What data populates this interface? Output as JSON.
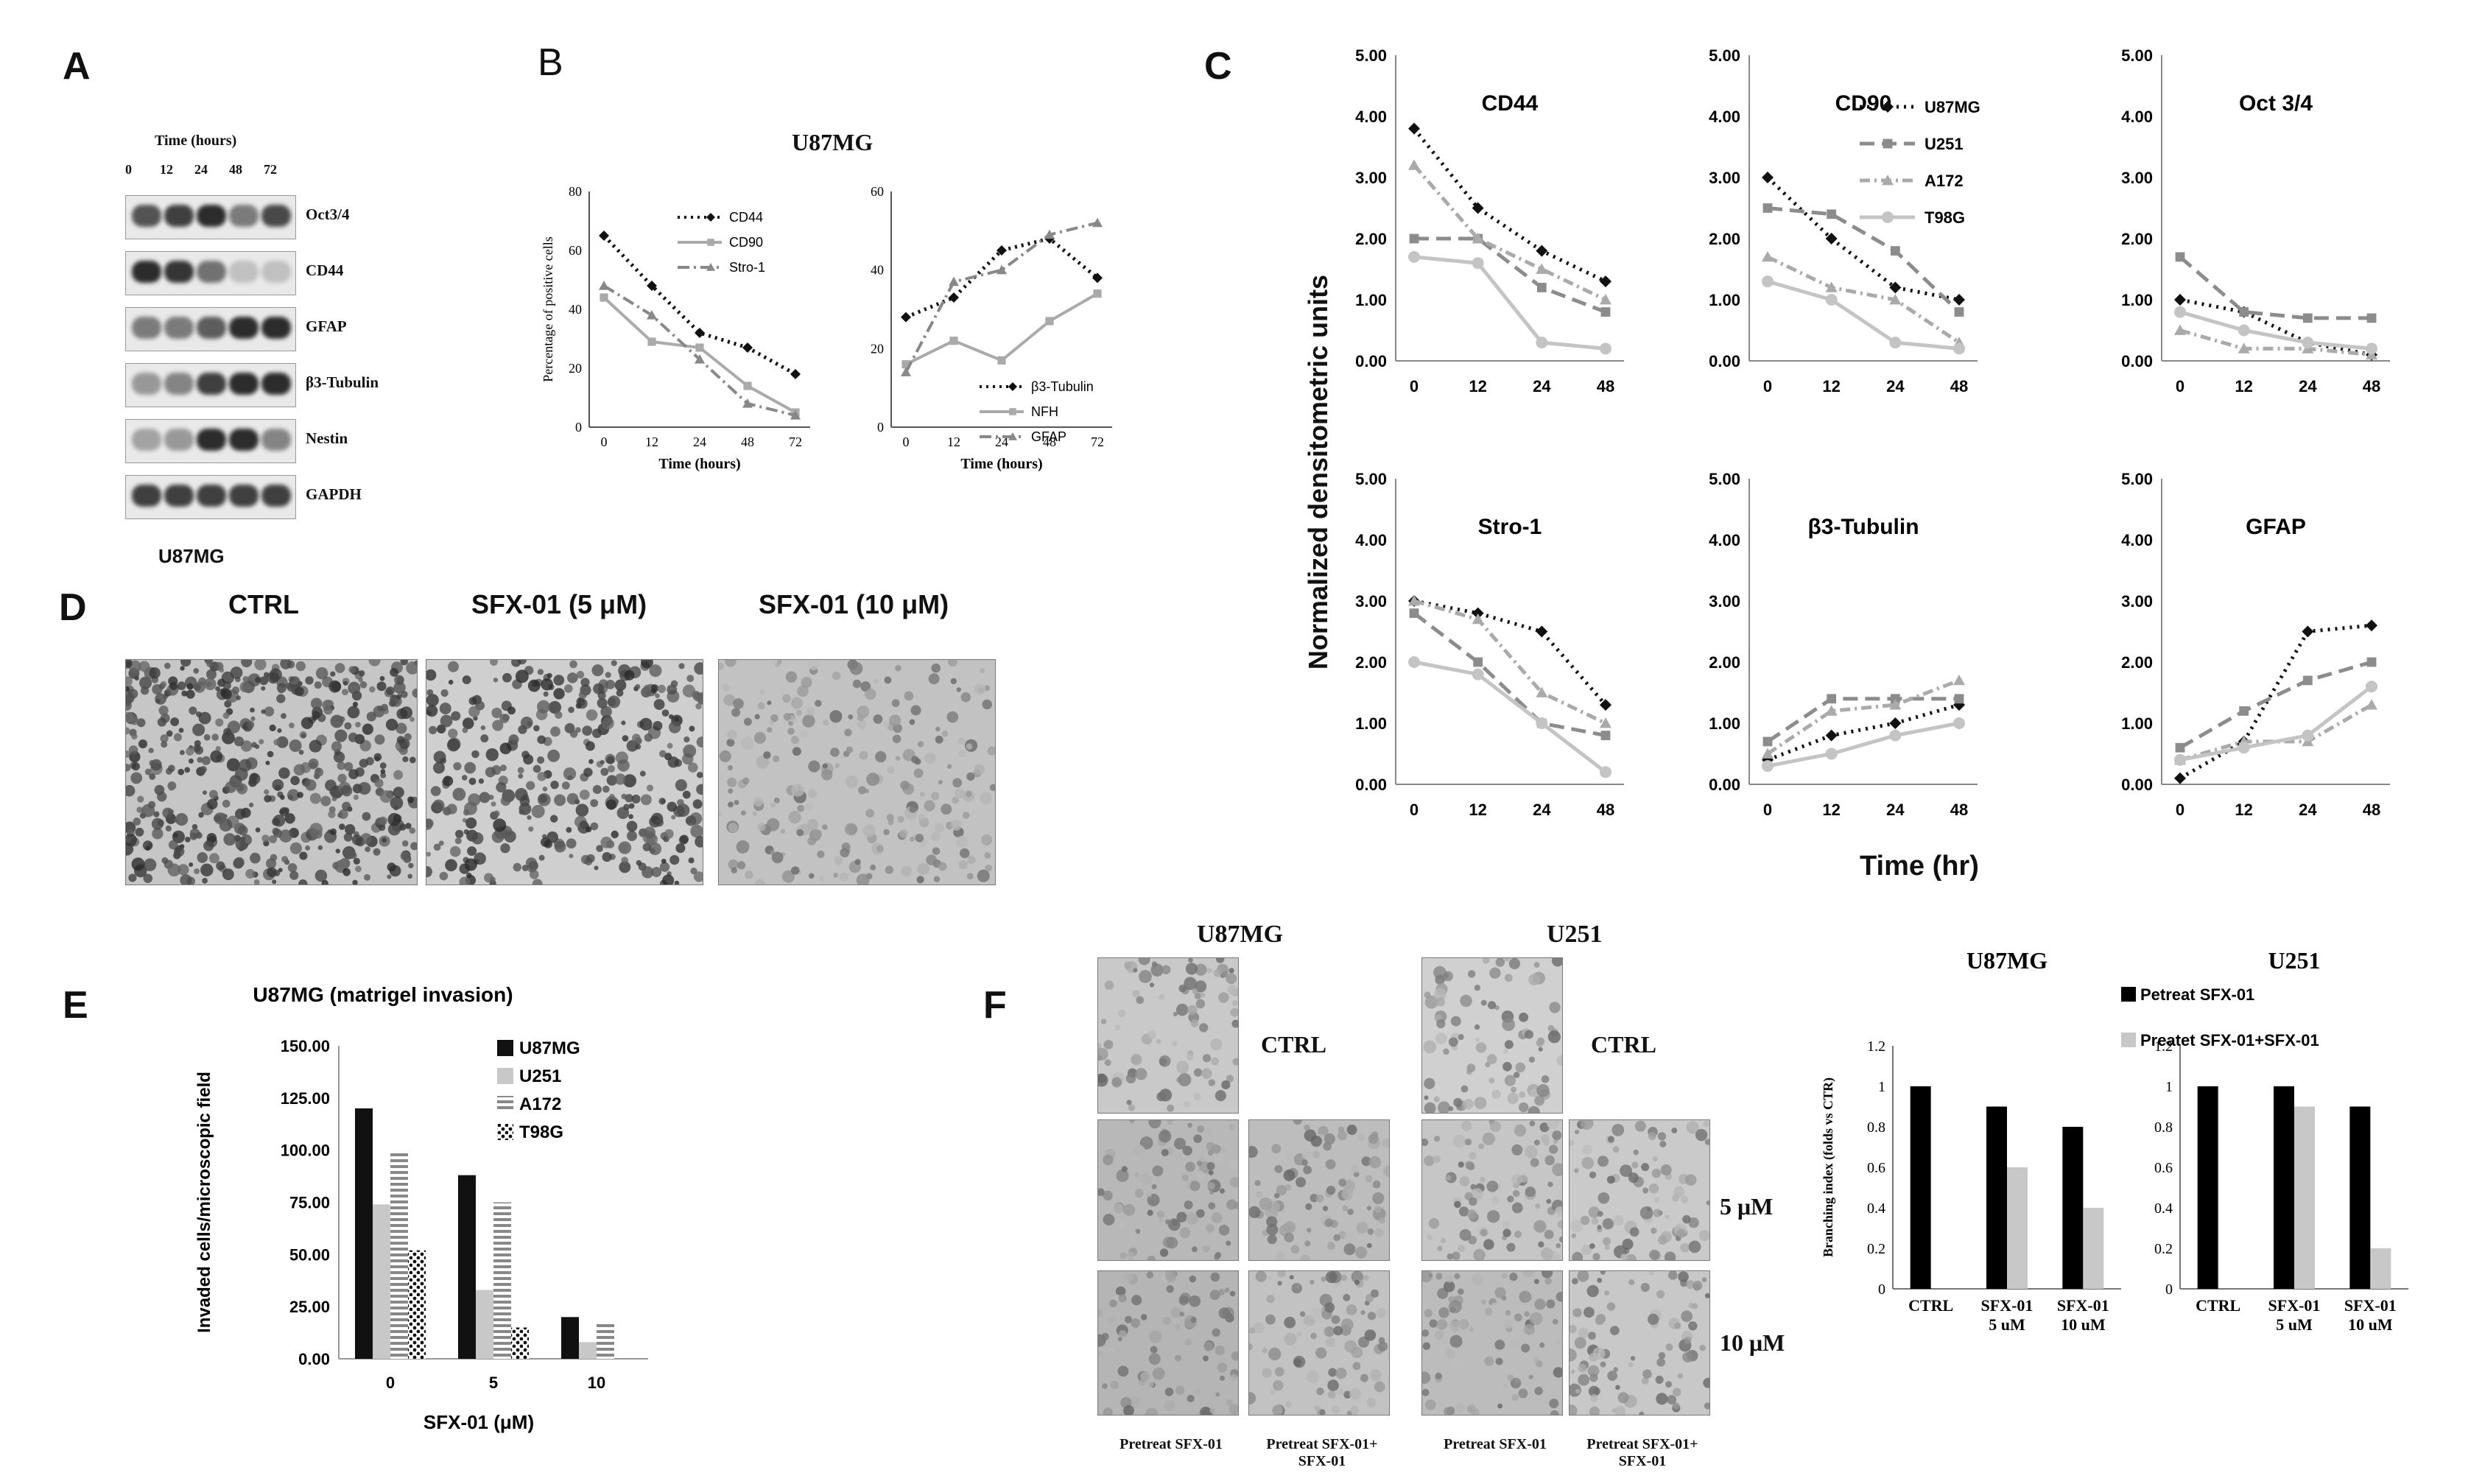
{
  "panels": {
    "A": "A",
    "B": "B",
    "C": "C",
    "D": "D",
    "E": "E",
    "F": "F"
  },
  "panelA": {
    "title": "Time (hours)",
    "times": [
      "0",
      "12",
      "24",
      "48",
      "72"
    ],
    "rows": [
      {
        "label": "Oct3/4",
        "levels": [
          0.75,
          0.85,
          0.95,
          0.55,
          0.8
        ]
      },
      {
        "label": "CD44",
        "levels": [
          0.95,
          0.9,
          0.6,
          0.2,
          0.2
        ]
      },
      {
        "label": "GFAP",
        "levels": [
          0.55,
          0.55,
          0.7,
          0.95,
          0.95
        ]
      },
      {
        "label": "β3-Tubulin",
        "levels": [
          0.4,
          0.5,
          0.85,
          0.95,
          0.95
        ]
      },
      {
        "label": "Nestin",
        "levels": [
          0.35,
          0.4,
          0.95,
          0.95,
          0.5
        ]
      },
      {
        "label": "GAPDH",
        "levels": [
          0.85,
          0.85,
          0.85,
          0.85,
          0.85
        ]
      }
    ],
    "cell_line": "U87MG"
  },
  "panelD": {
    "labels": [
      "CTRL",
      "SFX-01 (5 μM)",
      "SFX-01 (10 μM)"
    ]
  },
  "panelF": {
    "col_titles": [
      "U87MG",
      "U251"
    ],
    "row_labels": [
      "CTRL",
      "CTRL",
      "5 μM",
      "10 μM"
    ],
    "bottom_labels": [
      "Pretreat SFX-01",
      "Pretreat SFX-01+ SFX-01",
      "Pretreat SFX-01",
      "Pretreat SFX-01+ SFX-01"
    ]
  },
  "chart_data": [
    {
      "id": "B-left",
      "type": "line",
      "title": "U87MG",
      "xlabel": "Time (hours)",
      "ylabel": "Percentage of positive cells",
      "x": [
        0,
        12,
        24,
        48,
        72
      ],
      "ylim": [
        0,
        80
      ],
      "yticks": [
        0,
        20,
        40,
        60,
        80
      ],
      "series": [
        {
          "name": "CD44",
          "values": [
            65,
            48,
            32,
            27,
            18
          ],
          "color": "#111111",
          "dash": "dot",
          "marker": "diamond"
        },
        {
          "name": "CD90",
          "values": [
            44,
            29,
            27,
            14,
            5
          ],
          "color": "#aaaaaa",
          "dash": "solid",
          "marker": "square"
        },
        {
          "name": "Stro-1",
          "values": [
            48,
            38,
            23,
            8,
            4
          ],
          "color": "#888888",
          "dash": "dashdot",
          "marker": "triangle"
        }
      ]
    },
    {
      "id": "B-right",
      "type": "line",
      "xlabel": "Time (hours)",
      "ylabel": "",
      "x": [
        0,
        12,
        24,
        48,
        72
      ],
      "ylim": [
        0,
        60
      ],
      "yticks": [
        0,
        20,
        40,
        60
      ],
      "series": [
        {
          "name": "β3-Tubulin",
          "values": [
            28,
            33,
            45,
            48,
            38
          ],
          "color": "#111111",
          "dash": "dot",
          "marker": "diamond"
        },
        {
          "name": "NFH",
          "values": [
            16,
            22,
            17,
            27,
            34
          ],
          "color": "#aaaaaa",
          "dash": "solid",
          "marker": "square"
        },
        {
          "name": "GFAP",
          "values": [
            14,
            37,
            40,
            49,
            52
          ],
          "color": "#888888",
          "dash": "dashdot",
          "marker": "triangle"
        }
      ]
    },
    {
      "id": "C-CD44",
      "type": "line",
      "title": "CD44",
      "x": [
        0,
        12,
        24,
        48
      ],
      "ylim": [
        0,
        5
      ],
      "yticks": [
        "0.00",
        "1.00",
        "2.00",
        "3.00",
        "4.00",
        "5.00"
      ],
      "series": [
        {
          "name": "U87MG",
          "values": [
            3.8,
            2.5,
            1.8,
            1.3
          ]
        },
        {
          "name": "U251",
          "values": [
            2.0,
            2.0,
            1.2,
            0.8
          ]
        },
        {
          "name": "A172",
          "values": [
            3.2,
            2.0,
            1.5,
            1.0
          ]
        },
        {
          "name": "T98G",
          "values": [
            1.7,
            1.6,
            0.3,
            0.2
          ]
        }
      ]
    },
    {
      "id": "C-CD90",
      "type": "line",
      "title": "CD90",
      "x": [
        0,
        12,
        24,
        48
      ],
      "ylim": [
        0,
        5
      ],
      "yticks": [
        "0.00",
        "1.00",
        "2.00",
        "3.00",
        "4.00",
        "5.00"
      ],
      "series": [
        {
          "name": "U87MG",
          "values": [
            3.0,
            2.0,
            1.2,
            1.0
          ]
        },
        {
          "name": "U251",
          "values": [
            2.5,
            2.4,
            1.8,
            0.8
          ]
        },
        {
          "name": "A172",
          "values": [
            1.7,
            1.2,
            1.0,
            0.3
          ]
        },
        {
          "name": "T98G",
          "values": [
            1.3,
            1.0,
            0.3,
            0.2
          ]
        }
      ]
    },
    {
      "id": "C-Oct",
      "type": "line",
      "title": "Oct 3/4",
      "x": [
        0,
        12,
        24,
        48
      ],
      "ylim": [
        0,
        5
      ],
      "yticks": [
        "0.00",
        "1.00",
        "2.00",
        "3.00",
        "4.00",
        "5.00"
      ],
      "series": [
        {
          "name": "U87MG",
          "values": [
            1.0,
            0.8,
            0.3,
            0.1
          ]
        },
        {
          "name": "U251",
          "values": [
            1.7,
            0.8,
            0.7,
            0.7
          ]
        },
        {
          "name": "A172",
          "values": [
            0.5,
            0.2,
            0.2,
            0.1
          ]
        },
        {
          "name": "T98G",
          "values": [
            0.8,
            0.5,
            0.3,
            0.2
          ]
        }
      ]
    },
    {
      "id": "C-Stro",
      "type": "line",
      "title": "Stro-1",
      "x": [
        0,
        12,
        24,
        48
      ],
      "ylim": [
        0,
        5
      ],
      "yticks": [
        "0.00",
        "1.00",
        "2.00",
        "3.00",
        "4.00",
        "5.00"
      ],
      "series": [
        {
          "name": "U87MG",
          "values": [
            3.0,
            2.8,
            2.5,
            1.3
          ]
        },
        {
          "name": "U251",
          "values": [
            2.8,
            2.0,
            1.0,
            0.8
          ]
        },
        {
          "name": "A172",
          "values": [
            3.0,
            2.7,
            1.5,
            1.0
          ]
        },
        {
          "name": "T98G",
          "values": [
            2.0,
            1.8,
            1.0,
            0.2
          ]
        }
      ]
    },
    {
      "id": "C-Tub",
      "type": "line",
      "title": "β3-Tubulin",
      "x": [
        0,
        12,
        24,
        48
      ],
      "ylim": [
        0,
        5
      ],
      "yticks": [
        "0.00",
        "1.00",
        "2.00",
        "3.00",
        "4.00",
        "5.00"
      ],
      "series": [
        {
          "name": "U87MG",
          "values": [
            0.4,
            0.8,
            1.0,
            1.3
          ]
        },
        {
          "name": "U251",
          "values": [
            0.7,
            1.4,
            1.4,
            1.4
          ]
        },
        {
          "name": "A172",
          "values": [
            0.5,
            1.2,
            1.3,
            1.7
          ]
        },
        {
          "name": "T98G",
          "values": [
            0.3,
            0.5,
            0.8,
            1.0
          ]
        }
      ]
    },
    {
      "id": "C-GFAP",
      "type": "line",
      "title": "GFAP",
      "x": [
        0,
        12,
        24,
        48
      ],
      "ylim": [
        0,
        5
      ],
      "yticks": [
        "0.00",
        "1.00",
        "2.00",
        "3.00",
        "4.00",
        "5.00"
      ],
      "series": [
        {
          "name": "U87MG",
          "values": [
            0.1,
            0.7,
            2.5,
            2.6
          ]
        },
        {
          "name": "U251",
          "values": [
            0.6,
            1.2,
            1.7,
            2.0
          ]
        },
        {
          "name": "A172",
          "values": [
            0.4,
            0.7,
            0.7,
            1.3
          ]
        },
        {
          "name": "T98G",
          "values": [
            0.4,
            0.6,
            0.8,
            1.6
          ]
        }
      ]
    },
    {
      "id": "E",
      "type": "bar",
      "title": "U87MG (matrigel invasion)",
      "xlabel": "SFX-01 (μM)",
      "ylabel": "Invaded cells/microscopic field",
      "categories": [
        "0",
        "5",
        "10"
      ],
      "ylim": [
        0,
        150
      ],
      "yticks": [
        "0.00",
        "25.00",
        "50.00",
        "75.00",
        "100.00",
        "125.00",
        "150.00"
      ],
      "series": [
        {
          "name": "U87MG",
          "values": [
            120,
            88,
            20
          ]
        },
        {
          "name": "U251",
          "values": [
            74,
            33,
            8
          ]
        },
        {
          "name": "A172",
          "values": [
            99,
            75,
            17
          ]
        },
        {
          "name": "T98G",
          "values": [
            52,
            15,
            0
          ]
        }
      ]
    },
    {
      "id": "F-U87MG",
      "type": "bar",
      "title": "U87MG",
      "ylabel": "Branching index (folds vs CTR)",
      "categories": [
        "CTRL",
        "SFX-01 5 uM",
        "SFX-01 10 uM"
      ],
      "ylim": [
        0,
        1.2
      ],
      "yticks": [
        "0",
        "0.2",
        "0.4",
        "0.6",
        "0.8",
        "1",
        "1.2"
      ],
      "series": [
        {
          "name": "Petreat SFX-01",
          "values": [
            1.0,
            0.9,
            0.8
          ]
        },
        {
          "name": "Preatet SFX-01+SFX-01",
          "values": [
            null,
            0.6,
            0.4
          ]
        }
      ]
    },
    {
      "id": "F-U251",
      "type": "bar",
      "title": "U251",
      "categories": [
        "CTRL",
        "SFX-01 5 uM",
        "SFX-01 10 uM"
      ],
      "ylim": [
        0,
        1.2
      ],
      "yticks": [
        "0",
        "0.2",
        "0.4",
        "0.6",
        "0.8",
        "1",
        "1.2"
      ],
      "series": [
        {
          "name": "Petreat SFX-01",
          "values": [
            1.0,
            1.0,
            0.9
          ]
        },
        {
          "name": "Preatet SFX-01+SFX-01",
          "values": [
            null,
            0.9,
            0.2
          ]
        }
      ]
    }
  ],
  "panelC_ylabel": "Normalized densitometric units",
  "panelC_xlabel": "Time (hr)"
}
